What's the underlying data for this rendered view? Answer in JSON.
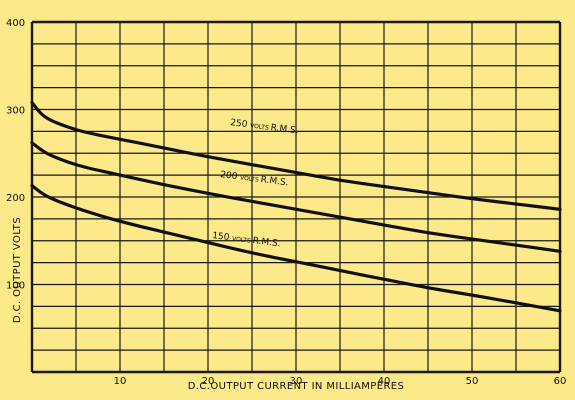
{
  "chart_data": {
    "type": "line",
    "xlabel": "D.C.OUTPUT CURRENT IN MILLIAMPERES",
    "ylabel": "D.C. OUTPUT VOLTS",
    "xlim": [
      0,
      60
    ],
    "ylim": [
      0,
      400
    ],
    "x_ticks": [
      10,
      20,
      30,
      40,
      50,
      60
    ],
    "x_tick_labels": [
      "10",
      "20",
      "30",
      "40",
      "50",
      "60"
    ],
    "y_ticks": [
      400,
      300,
      200,
      100
    ],
    "y_tick_labels": [
      "400",
      "300",
      "200",
      "100"
    ],
    "grid": true,
    "series": [
      {
        "name": "250 VOLTS R.M.S.",
        "name_parts": [
          "250",
          "VOLTS",
          "R.M.S."
        ],
        "x": [
          0,
          1,
          2,
          4,
          6,
          10,
          15,
          20,
          25,
          30,
          35,
          40,
          45,
          50,
          55,
          60
        ],
        "y": [
          308,
          295,
          288,
          280,
          274,
          266,
          256,
          246,
          237,
          228,
          219,
          212,
          205,
          198,
          192,
          186
        ]
      },
      {
        "name": "200 VOLTS R.M.S.",
        "name_parts": [
          "200",
          "VOLTS",
          "R.M.S."
        ],
        "x": [
          0,
          1,
          2,
          4,
          6,
          10,
          15,
          20,
          25,
          30,
          35,
          40,
          45,
          50,
          55,
          60
        ],
        "y": [
          262,
          254,
          248,
          240,
          234,
          225,
          214,
          204,
          195,
          186,
          177,
          168,
          159,
          152,
          145,
          138
        ]
      },
      {
        "name": "150 VOLTS R.M.S.",
        "name_parts": [
          "150",
          "VOLTS",
          "R.M.S."
        ],
        "x": [
          0,
          1,
          2,
          4,
          6,
          10,
          15,
          20,
          25,
          30,
          35,
          40,
          45,
          50,
          55,
          60
        ],
        "y": [
          213,
          205,
          199,
          191,
          184,
          172,
          160,
          148,
          136,
          126,
          116,
          106,
          96,
          88,
          79,
          70
        ]
      }
    ]
  }
}
